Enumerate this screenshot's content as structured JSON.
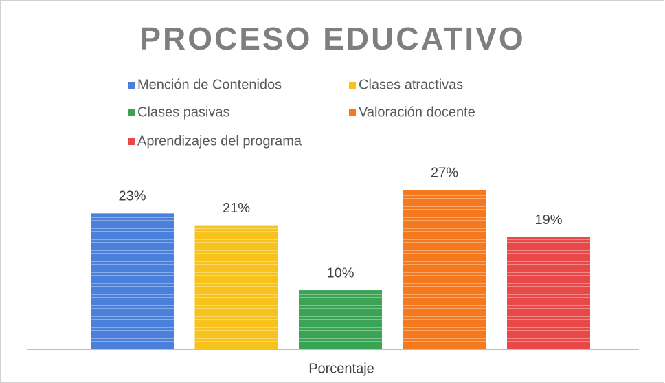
{
  "chart_data": {
    "type": "bar",
    "title": "PROCESO EDUCATIVO",
    "categories": [
      "Porcentaje"
    ],
    "series": [
      {
        "name": "Mención de Contenidos",
        "color": "#4a80da",
        "values": [
          23
        ],
        "value_labels": [
          "23%"
        ]
      },
      {
        "name": "Clases atractivas",
        "color": "#f7c21c",
        "values": [
          21
        ],
        "value_labels": [
          "21%"
        ]
      },
      {
        "name": "Clases pasivas",
        "color": "#3aa354",
        "values": [
          10
        ],
        "value_labels": [
          "10%"
        ]
      },
      {
        "name": "Valoración docente",
        "color": "#f57a1f",
        "values": [
          27
        ],
        "value_labels": [
          "27%"
        ]
      },
      {
        "name": "Aprendizajes del programa",
        "color": "#e84848",
        "values": [
          19
        ],
        "value_labels": [
          "19%"
        ]
      }
    ],
    "legend": "top"
  }
}
